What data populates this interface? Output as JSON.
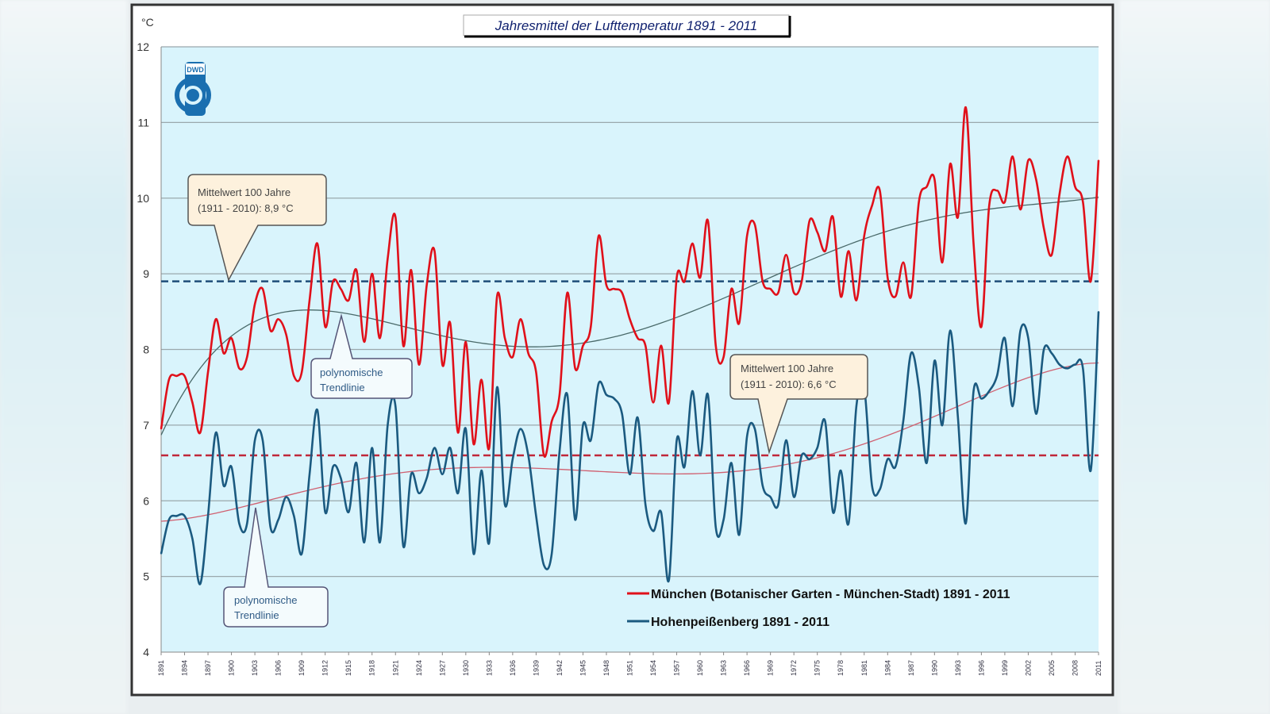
{
  "chart_data": {
    "type": "line",
    "title": "Jahresmittel der Lufttemperatur 1891 - 2011",
    "ylabel": "°C",
    "xlabel": "",
    "ylim": [
      4,
      12
    ],
    "yticks": [
      "4",
      "5",
      "6",
      "7",
      "8",
      "9",
      "10",
      "11",
      "12"
    ],
    "xlim": [
      1891,
      2011
    ],
    "xtick_step": 3,
    "grid": true,
    "legend_position": "bottom-right",
    "series": [
      {
        "name": "München (Botanischer Garten - München-Stadt) 1891 - 2011",
        "color": "#e0101a",
        "values": [
          6.95,
          7.6,
          7.65,
          7.65,
          7.3,
          6.9,
          7.7,
          8.4,
          7.95,
          8.15,
          7.75,
          7.9,
          8.6,
          8.8,
          8.25,
          8.4,
          8.2,
          7.65,
          7.7,
          8.65,
          9.4,
          8.3,
          8.9,
          8.8,
          8.65,
          9.05,
          8.1,
          9.0,
          8.15,
          9.2,
          9.75,
          8.05,
          9.05,
          7.8,
          8.85,
          9.3,
          7.8,
          8.35,
          6.9,
          8.1,
          6.75,
          7.6,
          6.7,
          8.7,
          8.15,
          7.9,
          8.4,
          7.95,
          7.7,
          6.6,
          7.05,
          7.4,
          8.75,
          7.75,
          8.05,
          8.3,
          9.5,
          8.85,
          8.8,
          8.75,
          8.4,
          8.15,
          8.05,
          7.3,
          8.05,
          7.3,
          8.95,
          8.9,
          9.4,
          8.95,
          9.7,
          8.05,
          7.9,
          8.8,
          8.35,
          9.5,
          9.65,
          8.9,
          8.8,
          8.75,
          9.25,
          8.75,
          8.9,
          9.7,
          9.55,
          9.3,
          9.75,
          8.7,
          9.3,
          8.65,
          9.5,
          9.9,
          10.1,
          8.95,
          8.7,
          9.15,
          8.7,
          9.95,
          10.15,
          10.25,
          9.15,
          10.45,
          9.75,
          11.2,
          9.4,
          8.3,
          9.9,
          10.1,
          9.95,
          10.55,
          9.85,
          10.5,
          10.25,
          9.6,
          9.25,
          10.05,
          10.55,
          10.15,
          9.95,
          8.9,
          10.5
        ],
        "mean_100_years": 8.9,
        "mean_color": "#1f4e79"
      },
      {
        "name": "Hohenpeißenberg 1891 - 2011",
        "color": "#1b5a80",
        "values": [
          5.3,
          5.75,
          5.8,
          5.8,
          5.5,
          4.9,
          5.8,
          6.9,
          6.2,
          6.45,
          5.7,
          5.7,
          6.8,
          6.8,
          5.65,
          5.75,
          6.05,
          5.8,
          5.3,
          6.35,
          7.2,
          5.85,
          6.45,
          6.3,
          5.85,
          6.5,
          5.45,
          6.7,
          5.45,
          7.0,
          7.25,
          5.4,
          6.35,
          6.1,
          6.3,
          6.7,
          6.35,
          6.7,
          6.1,
          6.95,
          5.3,
          6.4,
          5.45,
          7.5,
          5.95,
          6.55,
          6.95,
          6.6,
          5.8,
          5.15,
          5.3,
          6.65,
          7.4,
          5.75,
          7.0,
          6.8,
          7.55,
          7.4,
          7.35,
          7.15,
          6.35,
          7.1,
          5.95,
          5.6,
          5.85,
          4.95,
          6.8,
          6.45,
          7.45,
          6.6,
          7.4,
          5.65,
          5.75,
          6.5,
          5.55,
          6.85,
          6.95,
          6.2,
          6.05,
          5.95,
          6.8,
          6.05,
          6.6,
          6.55,
          6.7,
          7.05,
          5.85,
          6.4,
          5.7,
          7.25,
          7.5,
          6.2,
          6.15,
          6.55,
          6.45,
          7.05,
          7.95,
          7.5,
          6.5,
          7.85,
          7.0,
          8.25,
          7.1,
          5.7,
          7.45,
          7.35,
          7.45,
          7.65,
          8.15,
          7.25,
          8.25,
          8.15,
          7.15,
          8.0,
          7.95,
          7.8,
          7.75,
          7.8,
          7.75,
          6.4,
          8.5
        ],
        "mean_100_years": 6.6,
        "mean_color": "#c0283a"
      }
    ],
    "annotations": {
      "mean_munich": [
        "Mittelwert 100 Jahre",
        "(1911 - 2010):  8,9 °C"
      ],
      "mean_hohen": [
        "Mittelwert 100 Jahre",
        "(1911 - 2010):  6,6 °C"
      ],
      "trend_munich": [
        "polynomische",
        "Trendlinie"
      ],
      "trend_hohen": [
        "polynomische",
        "Trendlinie"
      ]
    },
    "trend_colors": {
      "munich": "#4a6a6a",
      "hohen": "#d06070"
    },
    "logo_text": "DWD",
    "colors": {
      "plot_bg": "#d9f4fc",
      "callout_fill": "#fdf1dd",
      "trend_callout_fill": "#f4fbfd"
    }
  }
}
